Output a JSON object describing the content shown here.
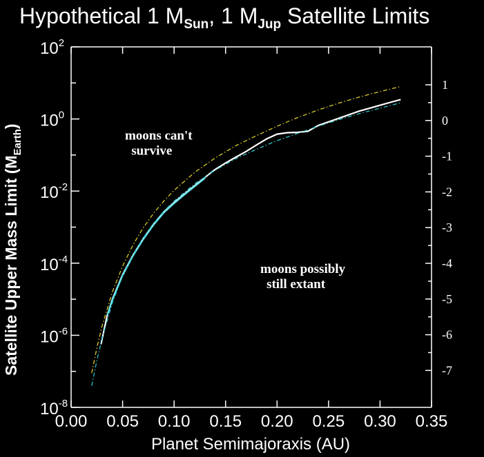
{
  "chart_data": {
    "type": "line",
    "title": {
      "main": "Hypothetical 1 M",
      "sub1": "Sun",
      "mid": ", 1 M",
      "sub2": "Jup",
      "end": " Satellite Limits"
    },
    "xlabel": "Planet Semimajoraxis (AU)",
    "ylabel": {
      "main": "Satellite Upper Mass Limit (M",
      "sub": "Earth",
      "end": ")"
    },
    "xlim": [
      0.0,
      0.35
    ],
    "ylim_log10": [
      -8,
      2
    ],
    "y_scale": "log",
    "x_ticks": [
      "0.00",
      "0.05",
      "0.10",
      "0.15",
      "0.20",
      "0.25",
      "0.30",
      "0.35"
    ],
    "y_tick_base": "10",
    "y_tick_exponents": [
      "2",
      "0",
      "-2",
      "-4",
      "-6",
      "-8"
    ],
    "right_ticks": [
      "1",
      "0",
      "-1",
      "-2",
      "-3",
      "-4",
      "-5",
      "-6",
      "-7"
    ],
    "grid": false,
    "legend": "none",
    "annotations": [
      {
        "line1": "moons can't",
        "line2": "survive",
        "x": 0.085,
        "y_log10": 0.0
      },
      {
        "line1": "moons possibly",
        "line2": "still extant",
        "x": 0.225,
        "y_log10": -3.7
      }
    ],
    "series": [
      {
        "style": "solid",
        "color": "#ffffff",
        "x": [
          0.029,
          0.035,
          0.04,
          0.05,
          0.06,
          0.07,
          0.08,
          0.09,
          0.1,
          0.11,
          0.12,
          0.13,
          0.14,
          0.15,
          0.16,
          0.17,
          0.18,
          0.19,
          0.2,
          0.21,
          0.22,
          0.23,
          0.24,
          0.25,
          0.26,
          0.27,
          0.28,
          0.29,
          0.3,
          0.31,
          0.32
        ],
        "y_log10": [
          -6.25,
          -5.45,
          -5.0,
          -4.32,
          -3.78,
          -3.32,
          -2.92,
          -2.58,
          -2.32,
          -2.08,
          -1.85,
          -1.62,
          -1.4,
          -1.22,
          -1.06,
          -0.9,
          -0.72,
          -0.55,
          -0.42,
          -0.38,
          -0.37,
          -0.34,
          -0.18,
          -0.08,
          0.02,
          0.12,
          0.22,
          0.3,
          0.38,
          0.46,
          0.54
        ]
      },
      {
        "style": "solid",
        "color": "#66e6ee",
        "x": [
          0.035,
          0.04,
          0.05,
          0.06,
          0.07,
          0.08,
          0.09,
          0.1,
          0.11,
          0.12,
          0.13
        ],
        "y_log10": [
          -5.45,
          -5.02,
          -4.34,
          -3.8,
          -3.34,
          -2.94,
          -2.6,
          -2.34,
          -2.1,
          -1.87,
          -1.64
        ]
      },
      {
        "style": "dashdot",
        "color": "#d8cc2a",
        "x": [
          0.02,
          0.025,
          0.03,
          0.04,
          0.05,
          0.06,
          0.07,
          0.08,
          0.09,
          0.1,
          0.12,
          0.14,
          0.16,
          0.18,
          0.2,
          0.22,
          0.24,
          0.26,
          0.28,
          0.3,
          0.32
        ],
        "y_log10": [
          -7.05,
          -6.35,
          -5.75,
          -4.8,
          -4.08,
          -3.5,
          -3.02,
          -2.62,
          -2.28,
          -1.98,
          -1.48,
          -1.08,
          -0.74,
          -0.46,
          -0.2,
          0.04,
          0.25,
          0.44,
          0.61,
          0.76,
          0.9
        ]
      },
      {
        "style": "dashdot",
        "color": "#2ec2c8",
        "x": [
          0.02,
          0.025,
          0.03,
          0.04,
          0.05,
          0.06,
          0.07,
          0.08,
          0.09,
          0.1,
          0.12,
          0.14,
          0.16,
          0.18,
          0.2,
          0.22,
          0.24,
          0.26,
          0.28,
          0.3,
          0.32
        ],
        "y_log10": [
          -7.4,
          -6.7,
          -6.1,
          -5.1,
          -4.35,
          -3.78,
          -3.3,
          -2.9,
          -2.56,
          -2.28,
          -1.8,
          -1.42,
          -1.1,
          -0.84,
          -0.6,
          -0.4,
          -0.2,
          -0.02,
          0.15,
          0.3,
          0.45
        ]
      }
    ]
  }
}
